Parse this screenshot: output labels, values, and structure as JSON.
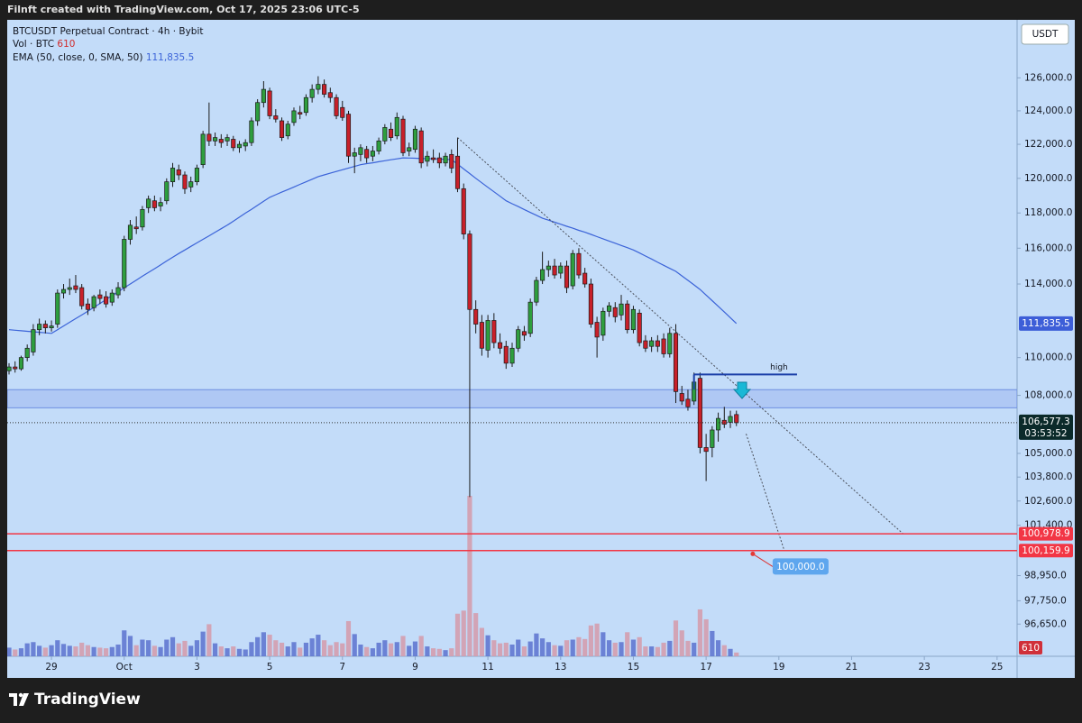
{
  "chart_data": {
    "type": "candlestick",
    "header": "Filnft created with TradingView.com, Oct 17, 2025 23:06 UTC-5",
    "title": "BTCUSDT Perpetual Contract · 4h · Bybit",
    "currency": "USDT",
    "volume_label": "Vol · BTC",
    "brand": "TradingView",
    "log": true,
    "up_color": "#2e9e3e",
    "down_color": "#c8202a",
    "volume_up_color": "#5c72cf",
    "volume_down_color": "#d59aaa",
    "xlim": [
      -0.3,
      166.3
    ],
    "xticks": [
      {
        "value": 7,
        "label": "29"
      },
      {
        "value": 19,
        "label": "Oct"
      },
      {
        "value": 31,
        "label": "3"
      },
      {
        "value": 43,
        "label": "5"
      },
      {
        "value": 55,
        "label": "7"
      },
      {
        "value": 67,
        "label": "9"
      },
      {
        "value": 79,
        "label": "11"
      },
      {
        "value": 91,
        "label": "13"
      },
      {
        "value": 103,
        "label": "15"
      },
      {
        "value": 115,
        "label": "17"
      },
      {
        "value": 127,
        "label": "19"
      },
      {
        "value": 139,
        "label": "21"
      },
      {
        "value": 151,
        "label": "23"
      },
      {
        "value": 163,
        "label": "25"
      }
    ],
    "ylim": [
      95150,
      129600
    ],
    "yticks": [
      {
        "value": 126000,
        "label": "126,000.0"
      },
      {
        "value": 124000,
        "label": "124,000.0"
      },
      {
        "value": 122000,
        "label": "122,000.0"
      },
      {
        "value": 120000,
        "label": "120,000.0"
      },
      {
        "value": 118000,
        "label": "118,000.0"
      },
      {
        "value": 116000,
        "label": "116,000.0"
      },
      {
        "value": 114000,
        "label": "114,000.0"
      },
      {
        "value": 110000,
        "label": "110,000.0"
      },
      {
        "value": 108000,
        "label": "108,000.0"
      },
      {
        "value": 105000,
        "label": "105,000.0"
      },
      {
        "value": 103800,
        "label": "103,800.0"
      },
      {
        "value": 102600,
        "label": "102,600.0"
      },
      {
        "value": 101400,
        "label": "101,400.0"
      },
      {
        "value": 98950,
        "label": "98,950.0"
      },
      {
        "value": 97750,
        "label": "97,750.0"
      },
      {
        "value": 96650,
        "label": "96,650.0"
      }
    ],
    "ohlc": [
      [
        109300,
        109700,
        109100,
        109500
      ],
      [
        109500,
        109800,
        109200,
        109400
      ],
      [
        109400,
        110100,
        109300,
        110000
      ],
      [
        110000,
        110700,
        109800,
        110500
      ],
      [
        110300,
        111800,
        110100,
        111500
      ],
      [
        111500,
        112100,
        111200,
        111800
      ],
      [
        111800,
        112000,
        111300,
        111600
      ],
      [
        111600,
        112000,
        111400,
        111700
      ],
      [
        111800,
        113700,
        111600,
        113500
      ],
      [
        113500,
        114000,
        113200,
        113700
      ],
      [
        113700,
        114300,
        113400,
        113800
      ],
      [
        113900,
        114500,
        113500,
        113700
      ],
      [
        113800,
        114000,
        112600,
        112800
      ],
      [
        112900,
        113200,
        112300,
        112600
      ],
      [
        112700,
        113400,
        112500,
        113300
      ],
      [
        113400,
        113700,
        112900,
        113200
      ],
      [
        113300,
        113600,
        112700,
        112900
      ],
      [
        113000,
        113700,
        112800,
        113500
      ],
      [
        113400,
        114100,
        113200,
        113800
      ],
      [
        113800,
        116700,
        113600,
        116500
      ],
      [
        116500,
        117600,
        116200,
        117300
      ],
      [
        117200,
        117800,
        116800,
        117100
      ],
      [
        117200,
        118400,
        117000,
        118200
      ],
      [
        118300,
        119000,
        118000,
        118800
      ],
      [
        118700,
        119000,
        118100,
        118300
      ],
      [
        118400,
        118900,
        118100,
        118600
      ],
      [
        118700,
        120000,
        118500,
        119800
      ],
      [
        119800,
        120900,
        119500,
        120600
      ],
      [
        120500,
        120800,
        119900,
        120200
      ],
      [
        120200,
        120400,
        119100,
        119400
      ],
      [
        119500,
        120100,
        119200,
        119800
      ],
      [
        119800,
        120800,
        119600,
        120600
      ],
      [
        120800,
        122800,
        120600,
        122600
      ],
      [
        122600,
        124500,
        121900,
        122200
      ],
      [
        122200,
        122700,
        121900,
        122400
      ],
      [
        122300,
        122600,
        121800,
        122100
      ],
      [
        122200,
        122600,
        121900,
        122400
      ],
      [
        122300,
        122500,
        121600,
        121800
      ],
      [
        121800,
        122200,
        121500,
        122000
      ],
      [
        121900,
        122300,
        121600,
        122100
      ],
      [
        122100,
        123600,
        121900,
        123400
      ],
      [
        123400,
        124700,
        123100,
        124500
      ],
      [
        124500,
        125800,
        124200,
        125300
      ],
      [
        125200,
        125400,
        123500,
        123700
      ],
      [
        123700,
        124100,
        123300,
        123500
      ],
      [
        123400,
        123600,
        122200,
        122400
      ],
      [
        122500,
        123400,
        122300,
        123200
      ],
      [
        123300,
        124200,
        123100,
        124000
      ],
      [
        123900,
        124300,
        123500,
        123800
      ],
      [
        123900,
        125000,
        123700,
        124800
      ],
      [
        124800,
        125600,
        124500,
        125300
      ],
      [
        125300,
        126100,
        125000,
        125600
      ],
      [
        125600,
        125900,
        124800,
        125000
      ],
      [
        125100,
        125400,
        124500,
        124800
      ],
      [
        124800,
        125000,
        123500,
        123700
      ],
      [
        124200,
        124600,
        123400,
        123600
      ],
      [
        123800,
        124000,
        120900,
        121300
      ],
      [
        121300,
        121800,
        120300,
        121500
      ],
      [
        121400,
        122000,
        121000,
        121800
      ],
      [
        121700,
        121900,
        120900,
        121200
      ],
      [
        121300,
        121900,
        121000,
        121600
      ],
      [
        121600,
        122400,
        121400,
        122200
      ],
      [
        122200,
        123200,
        122000,
        123000
      ],
      [
        122900,
        123300,
        122200,
        122400
      ],
      [
        122500,
        123900,
        122300,
        123600
      ],
      [
        123500,
        123700,
        121300,
        121500
      ],
      [
        121600,
        122100,
        121300,
        121800
      ],
      [
        121700,
        123100,
        121500,
        122900
      ],
      [
        122800,
        123000,
        120600,
        120900
      ],
      [
        121000,
        121600,
        120700,
        121300
      ],
      [
        121200,
        121700,
        120900,
        121100
      ],
      [
        121200,
        121500,
        120600,
        120900
      ],
      [
        120900,
        121500,
        120700,
        121300
      ],
      [
        121400,
        121700,
        120300,
        120600
      ],
      [
        121300,
        122400,
        119200,
        119400
      ],
      [
        119400,
        119700,
        116500,
        116800
      ],
      [
        116800,
        117000,
        102800,
        112600
      ],
      [
        112600,
        113100,
        111300,
        111800
      ],
      [
        111900,
        112300,
        110100,
        110500
      ],
      [
        110400,
        112300,
        110000,
        112000
      ],
      [
        112000,
        112400,
        110500,
        110800
      ],
      [
        110800,
        111300,
        110200,
        110500
      ],
      [
        110600,
        110900,
        109400,
        109700
      ],
      [
        109700,
        110800,
        109500,
        110500
      ],
      [
        110500,
        111700,
        110300,
        111500
      ],
      [
        111400,
        111700,
        110900,
        111200
      ],
      [
        111300,
        113200,
        111100,
        113000
      ],
      [
        113000,
        114400,
        112800,
        114200
      ],
      [
        114200,
        115800,
        114000,
        114800
      ],
      [
        114800,
        115300,
        114400,
        115000
      ],
      [
        115000,
        115400,
        114300,
        114500
      ],
      [
        114600,
        115200,
        114300,
        115000
      ],
      [
        115000,
        115300,
        113500,
        113800
      ],
      [
        113900,
        115900,
        113700,
        115700
      ],
      [
        115700,
        116000,
        114300,
        114500
      ],
      [
        114600,
        114900,
        113800,
        114000
      ],
      [
        114000,
        114300,
        111600,
        111800
      ],
      [
        111900,
        112200,
        110000,
        111100
      ],
      [
        111200,
        112700,
        110900,
        112500
      ],
      [
        112500,
        113000,
        112200,
        112800
      ],
      [
        112700,
        113000,
        111900,
        112200
      ],
      [
        112300,
        113400,
        112000,
        112900
      ],
      [
        112900,
        113100,
        111300,
        111500
      ],
      [
        111500,
        112800,
        111300,
        112600
      ],
      [
        112400,
        112600,
        110600,
        110800
      ],
      [
        110900,
        111200,
        110300,
        110500
      ],
      [
        110600,
        111100,
        110300,
        110900
      ],
      [
        110900,
        111200,
        110300,
        110600
      ],
      [
        111000,
        111300,
        110000,
        110200
      ],
      [
        110200,
        111600,
        110000,
        111300
      ],
      [
        111300,
        111800,
        107600,
        108200
      ],
      [
        108100,
        108500,
        107500,
        107700
      ],
      [
        107800,
        108300,
        107200,
        107400
      ],
      [
        107700,
        109200,
        107500,
        108700
      ],
      [
        108900,
        109200,
        105000,
        105300
      ],
      [
        105300,
        106000,
        103600,
        105100
      ],
      [
        105300,
        106400,
        104800,
        106200
      ],
      [
        106200,
        107100,
        105600,
        106800
      ],
      [
        106700,
        107400,
        106300,
        106500
      ],
      [
        106600,
        107200,
        106300,
        106900
      ],
      [
        107000,
        107200,
        106400,
        106577.3
      ]
    ],
    "last_close_label": "106,577.3",
    "countdown": "03:53:52",
    "volume": [
      1400,
      1100,
      1300,
      2100,
      2300,
      1700,
      1400,
      1800,
      2600,
      2000,
      1700,
      1600,
      2200,
      1800,
      1500,
      1400,
      1300,
      1500,
      1900,
      4200,
      3300,
      1800,
      2700,
      2600,
      1700,
      1500,
      2700,
      3100,
      2100,
      2500,
      1700,
      2600,
      4000,
      5200,
      2100,
      1600,
      1300,
      1600,
      1200,
      1100,
      2300,
      3100,
      3900,
      3500,
      2600,
      2200,
      1600,
      2300,
      1400,
      2200,
      2900,
      3500,
      2600,
      1800,
      2300,
      2100,
      5700,
      3600,
      1900,
      1500,
      1300,
      2200,
      2600,
      2100,
      2300,
      3300,
      1700,
      2400,
      3300,
      1600,
      1300,
      1200,
      1000,
      1300,
      6900,
      7400,
      26000,
      7000,
      4600,
      3400,
      2600,
      2100,
      2200,
      1900,
      2700,
      1600,
      2400,
      3700,
      2900,
      2300,
      1800,
      1700,
      2600,
      2700,
      3100,
      2800,
      5000,
      5300,
      3900,
      2600,
      2200,
      2300,
      3900,
      2700,
      3100,
      1600,
      1600,
      1500,
      2200,
      2500,
      5800,
      4200,
      2500,
      2200,
      7600,
      6000,
      4100,
      2600,
      1800,
      1200,
      610
    ],
    "ema": {
      "name": "EMA (50, close, 0, SMA, 50)",
      "color": "#3b63d8",
      "last_label": "111,835.5",
      "values": [
        111500,
        111470,
        111440,
        111410,
        111390,
        111360,
        111330,
        111300,
        111500,
        111700,
        111900,
        112100,
        112300,
        112500,
        112710,
        112930,
        113140,
        113360,
        113570,
        113790,
        114000,
        114210,
        114430,
        114640,
        114850,
        115060,
        115280,
        115490,
        115700,
        115900,
        116100,
        116300,
        116500,
        116700,
        116900,
        117100,
        117300,
        117530,
        117760,
        117990,
        118210,
        118440,
        118670,
        118900,
        119050,
        119200,
        119350,
        119500,
        119650,
        119800,
        119950,
        120100,
        120200,
        120300,
        120400,
        120500,
        120600,
        120700,
        120800,
        120860,
        120910,
        120970,
        121030,
        121090,
        121140,
        121200,
        121190,
        121180,
        121160,
        121150,
        121140,
        121130,
        121110,
        121100,
        120830,
        120550,
        120280,
        120000,
        119740,
        119480,
        119220,
        118960,
        118700,
        118530,
        118370,
        118200,
        118030,
        117870,
        117700,
        117590,
        117470,
        117360,
        117240,
        117130,
        117010,
        116900,
        116780,
        116650,
        116530,
        116400,
        116280,
        116150,
        116030,
        115900,
        115730,
        115560,
        115390,
        115210,
        115040,
        114870,
        114700,
        114450,
        114200,
        113950,
        113700,
        113390,
        113080,
        112770,
        112460,
        112150,
        111835.5
      ]
    },
    "levels": [
      {
        "value": 100978.9,
        "label": "100,978.9",
        "color": "#f23645"
      },
      {
        "value": 100159.9,
        "label": "100,159.9",
        "color": "#f23645"
      }
    ],
    "zone": {
      "low": 107350,
      "high": 108300,
      "color": "#9fb8f0"
    },
    "high_line": {
      "label": "high",
      "value": 109100,
      "x": [
        113,
        130
      ],
      "color": "#1a3ea8"
    },
    "trendlines": [
      {
        "x": [
          74,
          147.5
        ],
        "y": [
          122400,
          100980
        ]
      },
      {
        "x": [
          121.6,
          127.9
        ],
        "y": [
          106000,
          100160
        ]
      }
    ],
    "target": {
      "x": 122.7,
      "value": 100000,
      "label": "100,000.0"
    }
  }
}
